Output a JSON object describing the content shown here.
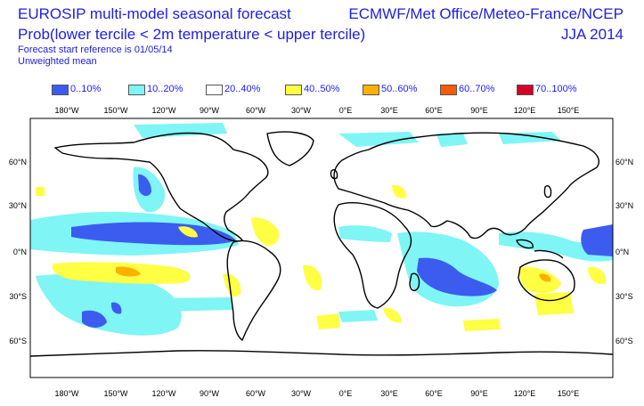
{
  "header": {
    "title_left": "EUROSIP multi-model seasonal forecast",
    "subtitle_left": "Prob(lower tercile < 2m temperature < upper tercile)",
    "reference": "Forecast start reference is 01/05/14",
    "mean_type": "Unweighted mean",
    "title_right": "ECMWF/Met Office/Meteo-France/NCEP",
    "season": "JJA 2014"
  },
  "legend": [
    {
      "label": "0..10%",
      "color": "#3c5cf0"
    },
    {
      "label": "10..20%",
      "color": "#7ff5f5"
    },
    {
      "label": "20..40%",
      "color": "#ffffff"
    },
    {
      "label": "40..50%",
      "color": "#ffff44"
    },
    {
      "label": "50..60%",
      "color": "#ffb000"
    },
    {
      "label": "60..70%",
      "color": "#ff5a00"
    },
    {
      "label": "70..100%",
      "color": "#d4002a"
    }
  ],
  "axes": {
    "lon_labels": [
      "180°W",
      "150°W",
      "120°W",
      "90°W",
      "60°W",
      "30°W",
      "0°E",
      "30°E",
      "60°E",
      "90°E",
      "120°E",
      "150°E"
    ],
    "lat_labels": [
      "60°N",
      "30°N",
      "0°N",
      "30°S",
      "60°S"
    ]
  }
}
